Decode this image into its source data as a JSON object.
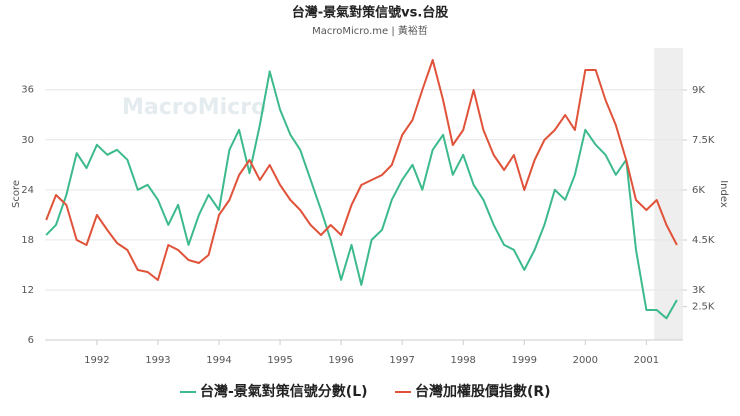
{
  "chart_data": {
    "type": "line",
    "title": "台灣-景氣對策信號vs.台股",
    "subtitle": "MacroMicro.me | 黃裕哲",
    "watermark": "MacroMicro",
    "ylabel": "Score",
    "y2label": "Index",
    "x": [
      1991.17,
      1991.33,
      1991.5,
      1991.67,
      1991.83,
      1992,
      1992.17,
      1992.33,
      1992.5,
      1992.67,
      1992.83,
      1993,
      1993.17,
      1993.33,
      1993.5,
      1993.67,
      1993.83,
      1994,
      1994.17,
      1994.33,
      1994.5,
      1994.67,
      1994.83,
      1995,
      1995.17,
      1995.33,
      1995.5,
      1995.67,
      1995.83,
      1996,
      1996.17,
      1996.33,
      1996.5,
      1996.67,
      1996.83,
      1997,
      1997.17,
      1997.33,
      1997.5,
      1997.67,
      1997.83,
      1998,
      1998.17,
      1998.33,
      1998.5,
      1998.67,
      1998.83,
      1999,
      1999.17,
      1999.33,
      1999.5,
      1999.67,
      1999.83,
      2000,
      2000.17,
      2000.33,
      2000.5,
      2000.67,
      2000.83,
      2001,
      2001.17,
      2001.33,
      2001.5
    ],
    "series": [
      {
        "name": "台灣-景氣對策信號分數(L)",
        "color": "#3cba8c",
        "axis": "y",
        "values": [
          18.6,
          19.8,
          23.4,
          28.4,
          26.6,
          29.4,
          28.2,
          28.8,
          27.6,
          24,
          24.6,
          22.8,
          19.8,
          22.2,
          17.4,
          21,
          23.4,
          21.6,
          28.8,
          31.2,
          26,
          31.8,
          38.2,
          33.6,
          30.6,
          28.8,
          25.2,
          21.6,
          18,
          13.2,
          17.4,
          12.6,
          18,
          19.2,
          22.8,
          25.2,
          27,
          24,
          28.8,
          30.6,
          25.8,
          28.2,
          24.6,
          22.8,
          19.8,
          17.4,
          16.8,
          14.4,
          16.8,
          19.8,
          24,
          22.8,
          25.8,
          31.2,
          29.4,
          28.2,
          25.8,
          27.6,
          16.8,
          9.6,
          9.6,
          8.6,
          10.8
        ]
      },
      {
        "name": "台灣加權股價指數(R)",
        "color": "#e0533a",
        "axis": "y2",
        "values": [
          5100,
          5850,
          5550,
          4500,
          4350,
          5250,
          4800,
          4410,
          4200,
          3600,
          3540,
          3300,
          4350,
          4200,
          3900,
          3810,
          4050,
          5250,
          5700,
          6450,
          6900,
          6300,
          6750,
          6150,
          5700,
          5400,
          4950,
          4650,
          4950,
          4650,
          5550,
          6150,
          6300,
          6450,
          6750,
          7650,
          8100,
          9000,
          9900,
          8700,
          7350,
          7800,
          9000,
          7800,
          7050,
          6600,
          7050,
          6000,
          6900,
          7500,
          7800,
          8250,
          7800,
          9600,
          9600,
          8700,
          7950,
          6900,
          5700,
          5400,
          5700,
          4950,
          4350
        ]
      }
    ],
    "highlight": [
      2001.13,
      2001.6
    ],
    "xlim": [
      1991.15,
      2001.6
    ],
    "xticks": [
      1992,
      1993,
      1994,
      1995,
      1996,
      1997,
      1998,
      1999,
      2000,
      2001
    ],
    "ylim": [
      6,
      41
    ],
    "yticks": [
      6,
      12,
      18,
      24,
      30,
      36
    ],
    "y2lim": [
      1500,
      10260
    ],
    "y2ticks": [
      {
        "value": 2500,
        "label": "2.5K"
      },
      {
        "value": 3000,
        "label": "3K"
      },
      {
        "value": 4500,
        "label": "4.5K"
      },
      {
        "value": 6000,
        "label": "6K"
      },
      {
        "value": 7500,
        "label": "7.5K"
      },
      {
        "value": 9000,
        "label": "9K"
      }
    ],
    "grid": true,
    "legend": "bottom"
  }
}
